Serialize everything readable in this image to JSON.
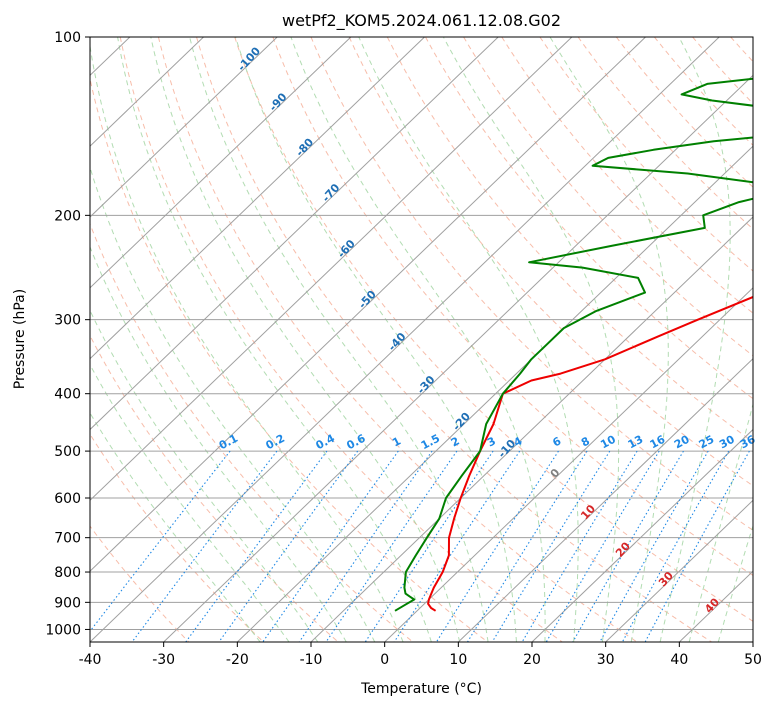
{
  "chart_data": {
    "type": "line",
    "diagram": "skew-T log-P",
    "title": "wetPf2_KOM5.2024.061.12.08.G02",
    "xlabel": "Temperature (°C)",
    "ylabel": "Pressure (hPa)",
    "xlim": [
      -40,
      50
    ],
    "ylim": [
      1050,
      100
    ],
    "y_scale": "log",
    "grid": true,
    "x_ticks": [
      "-40",
      "-30",
      "-20",
      "-10",
      "0",
      "10",
      "20",
      "30",
      "40",
      "50"
    ],
    "y_ticks": [
      "100",
      "200",
      "300",
      "400",
      "500",
      "600",
      "700",
      "800",
      "900",
      "1000"
    ],
    "isotherm_labels": [
      "-100",
      "-90",
      "-80",
      "-70",
      "-60",
      "-50",
      "-40",
      "-30",
      "-20",
      "-10"
    ],
    "mixing_ratio_labels": [
      "0.1",
      "0.2",
      "0.4",
      "0.6",
      "1",
      "1.5",
      "2",
      "3",
      "4",
      "6",
      "8",
      "10",
      "13",
      "16",
      "20",
      "25",
      "30",
      "36"
    ],
    "isotherm_labels_upper": [
      "0",
      "10",
      "20",
      "30",
      "40"
    ],
    "colors": {
      "temperature": "#ee0000",
      "dewpoint": "#008000",
      "isotherm": "#a0a0a0",
      "dry_adiabat": "#f4a78e",
      "moist_adiabat": "#9fd39f",
      "mixing_ratio": "#1e88e5",
      "isotherm_label_cold": "#1f6fb5",
      "isotherm_label_warm": "#d62728",
      "isotherm_label_zero": "#808080"
    },
    "series": [
      {
        "name": "",
        "role": "temperature",
        "points": [
          [
            2.5,
            930
          ],
          [
            1.5,
            920
          ],
          [
            0.5,
            905
          ],
          [
            0,
            890
          ],
          [
            -0.5,
            870
          ],
          [
            -1,
            850
          ],
          [
            -2,
            800
          ],
          [
            -3.5,
            750
          ],
          [
            -6,
            700
          ],
          [
            -8,
            650
          ],
          [
            -10,
            600
          ],
          [
            -12,
            550
          ],
          [
            -14,
            500
          ],
          [
            -16,
            450
          ],
          [
            -19,
            400
          ],
          [
            -17,
            380
          ],
          [
            -14,
            370
          ],
          [
            -10,
            350
          ],
          [
            -6,
            320
          ],
          [
            -3,
            300
          ],
          [
            4,
            260
          ],
          [
            11,
            220
          ],
          [
            15,
            200
          ],
          [
            23,
            170
          ],
          [
            30,
            150
          ],
          [
            37,
            130
          ],
          [
            40,
            120
          ],
          [
            41,
            110
          ],
          [
            42,
            100
          ]
        ]
      },
      {
        "name": "",
        "role": "dewpoint",
        "points": [
          [
            -3,
            930
          ],
          [
            -2.5,
            910
          ],
          [
            -2,
            890
          ],
          [
            -3,
            880
          ],
          [
            -4,
            870
          ],
          [
            -5,
            850
          ],
          [
            -7,
            800
          ],
          [
            -8,
            750
          ],
          [
            -9,
            700
          ],
          [
            -10,
            650
          ],
          [
            -12,
            600
          ],
          [
            -13,
            550
          ],
          [
            -14,
            500
          ],
          [
            -17,
            450
          ],
          [
            -19,
            400
          ],
          [
            -19.5,
            370
          ],
          [
            -20,
            350
          ],
          [
            -20,
            330
          ],
          [
            -20,
            310
          ],
          [
            -18,
            290
          ],
          [
            -14,
            270
          ],
          [
            -17,
            255
          ],
          [
            -26,
            245
          ],
          [
            -34,
            240
          ],
          [
            -25,
            225
          ],
          [
            -15,
            210
          ],
          [
            -17,
            200
          ],
          [
            -14,
            190
          ],
          [
            -8,
            180
          ],
          [
            -25,
            170
          ],
          [
            -39,
            165
          ],
          [
            -38,
            160
          ],
          [
            -33,
            155
          ],
          [
            -26,
            150
          ],
          [
            -15,
            145
          ],
          [
            -14,
            140
          ],
          [
            -20,
            133
          ],
          [
            -32,
            128
          ],
          [
            -37,
            125
          ],
          [
            -35,
            120
          ],
          [
            -28,
            117
          ],
          [
            -20,
            113
          ],
          [
            -15,
            108
          ],
          [
            -9,
            103
          ],
          [
            -6,
            100
          ]
        ]
      }
    ]
  }
}
